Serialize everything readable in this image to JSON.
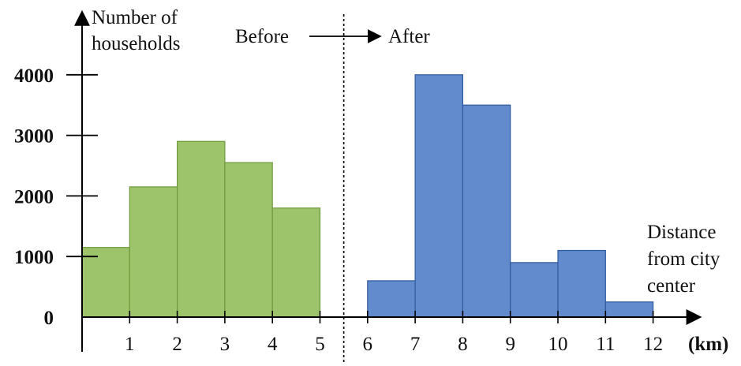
{
  "chart_data": {
    "type": "bar",
    "title": "",
    "ylabel": "Number of households",
    "ylabel_lines": [
      "Number of",
      "households"
    ],
    "xlabel": "Distance from city center",
    "xlabel_lines": [
      "Distance",
      "from city",
      "center"
    ],
    "x_unit": "(km)",
    "ylim": [
      0,
      4000
    ],
    "xlim": [
      0,
      12
    ],
    "y_ticks": [
      0,
      1000,
      2000,
      3000,
      4000
    ],
    "x_ticks": [
      1,
      2,
      3,
      4,
      5,
      6,
      7,
      8,
      9,
      10,
      11,
      12
    ],
    "divider_x": 5.5,
    "annotation_before": "Before",
    "annotation_after": "After",
    "series": [
      {
        "name": "Before",
        "color": "#9dc36b",
        "edge_color": "#6e9a3a",
        "bins": [
          {
            "x0": 0,
            "x1": 1,
            "value": 1150
          },
          {
            "x0": 1,
            "x1": 2,
            "value": 2150
          },
          {
            "x0": 2,
            "x1": 3,
            "value": 2900
          },
          {
            "x0": 3,
            "x1": 4,
            "value": 2550
          },
          {
            "x0": 4,
            "x1": 5,
            "value": 1800
          }
        ]
      },
      {
        "name": "After",
        "color": "#628bce",
        "edge_color": "#2e5a9e",
        "bins": [
          {
            "x0": 6,
            "x1": 7,
            "value": 600
          },
          {
            "x0": 7,
            "x1": 8,
            "value": 4000
          },
          {
            "x0": 8,
            "x1": 9,
            "value": 3500
          },
          {
            "x0": 9,
            "x1": 10,
            "value": 900
          },
          {
            "x0": 10,
            "x1": 11,
            "value": 1100
          },
          {
            "x0": 11,
            "x1": 12,
            "value": 250
          }
        ]
      }
    ]
  }
}
